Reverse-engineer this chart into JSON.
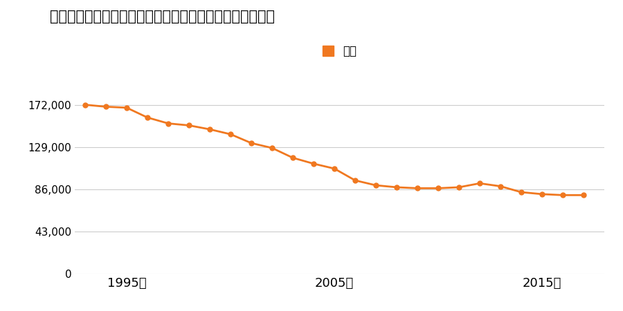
{
  "title": "滋賀県大津市国分１丁目字畑ケ山１３９番２９の地価推移",
  "legend_label": "価格",
  "line_color": "#f07820",
  "marker_color": "#f07820",
  "background_color": "#ffffff",
  "grid_color": "#cccccc",
  "years": [
    1993,
    1994,
    1995,
    1996,
    1997,
    1998,
    1999,
    2000,
    2001,
    2002,
    2003,
    2004,
    2005,
    2006,
    2007,
    2008,
    2009,
    2010,
    2011,
    2012,
    2013,
    2014,
    2015,
    2016,
    2017
  ],
  "values": [
    172000,
    170000,
    169000,
    159000,
    153000,
    151000,
    147000,
    142000,
    133000,
    128000,
    118000,
    112000,
    107000,
    95000,
    90000,
    88000,
    87000,
    87000,
    88000,
    92000,
    89000,
    83000,
    81000,
    80000,
    80000
  ],
  "yticks": [
    0,
    43000,
    86000,
    129000,
    172000
  ],
  "xtick_years": [
    1995,
    2005,
    2015
  ],
  "ylim": [
    0,
    190000
  ],
  "xlim": [
    1992.5,
    2018
  ]
}
